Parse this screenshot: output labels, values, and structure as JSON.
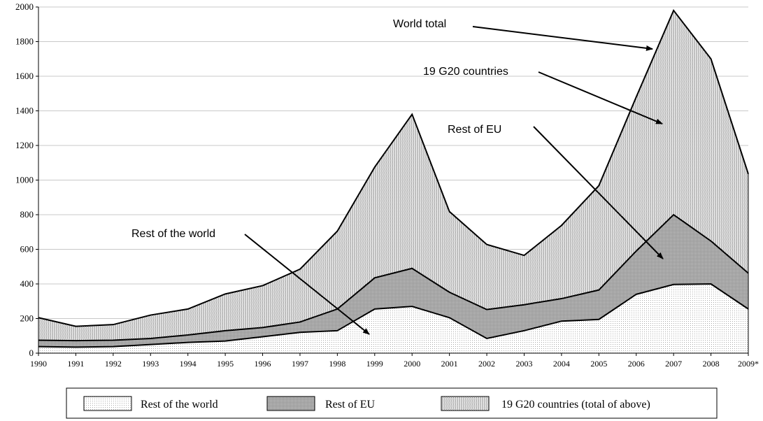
{
  "chart_data": {
    "type": "area",
    "title": "",
    "xlabel": "",
    "ylabel": "",
    "ylim": [
      0,
      2000
    ],
    "yticks": [
      0,
      200,
      400,
      600,
      800,
      1000,
      1200,
      1400,
      1600,
      1800,
      2000
    ],
    "categories": [
      "1990",
      "1991",
      "1992",
      "1993",
      "1994",
      "1995",
      "1996",
      "1997",
      "1998",
      "1999",
      "2000",
      "2001",
      "2002",
      "2003",
      "2004",
      "2005",
      "2006",
      "2007",
      "2008",
      "2009*"
    ],
    "grid": true,
    "stacked": true,
    "series": [
      {
        "name": "Rest of the world",
        "values": [
          38,
          35,
          38,
          50,
          62,
          70,
          95,
          120,
          130,
          255,
          270,
          205,
          85,
          130,
          185,
          195,
          340,
          397,
          400,
          255
        ],
        "color": "#ededed"
      },
      {
        "name": "Rest of EU",
        "values": [
          75,
          72,
          75,
          85,
          105,
          130,
          148,
          180,
          255,
          435,
          490,
          352,
          252,
          280,
          315,
          365,
          590,
          800,
          648,
          462
        ],
        "color": "#b4b4b4"
      },
      {
        "name": "19 G20 countries (total of above)",
        "values": [
          205,
          155,
          165,
          220,
          255,
          342,
          390,
          485,
          705,
          1075,
          1380,
          818,
          628,
          565,
          738,
          968,
          1480,
          1980,
          1700,
          1035
        ],
        "color": "#d2d2d2"
      }
    ],
    "annotations": [
      {
        "text": "World total",
        "target_category": "2007",
        "target_value": 1770
      },
      {
        "text": "19 G20 countries",
        "target_category": "2007",
        "target_value": 1310
      },
      {
        "text": "Rest of EU",
        "target_category": "2007",
        "target_value": 560
      },
      {
        "text": "Rest of the world",
        "target_category": "1999",
        "target_value": 100
      }
    ],
    "legend": {
      "position": "bottom",
      "entries": [
        "Rest of the world",
        "Rest of EU",
        "19 G20 countries (total of above)"
      ]
    }
  }
}
